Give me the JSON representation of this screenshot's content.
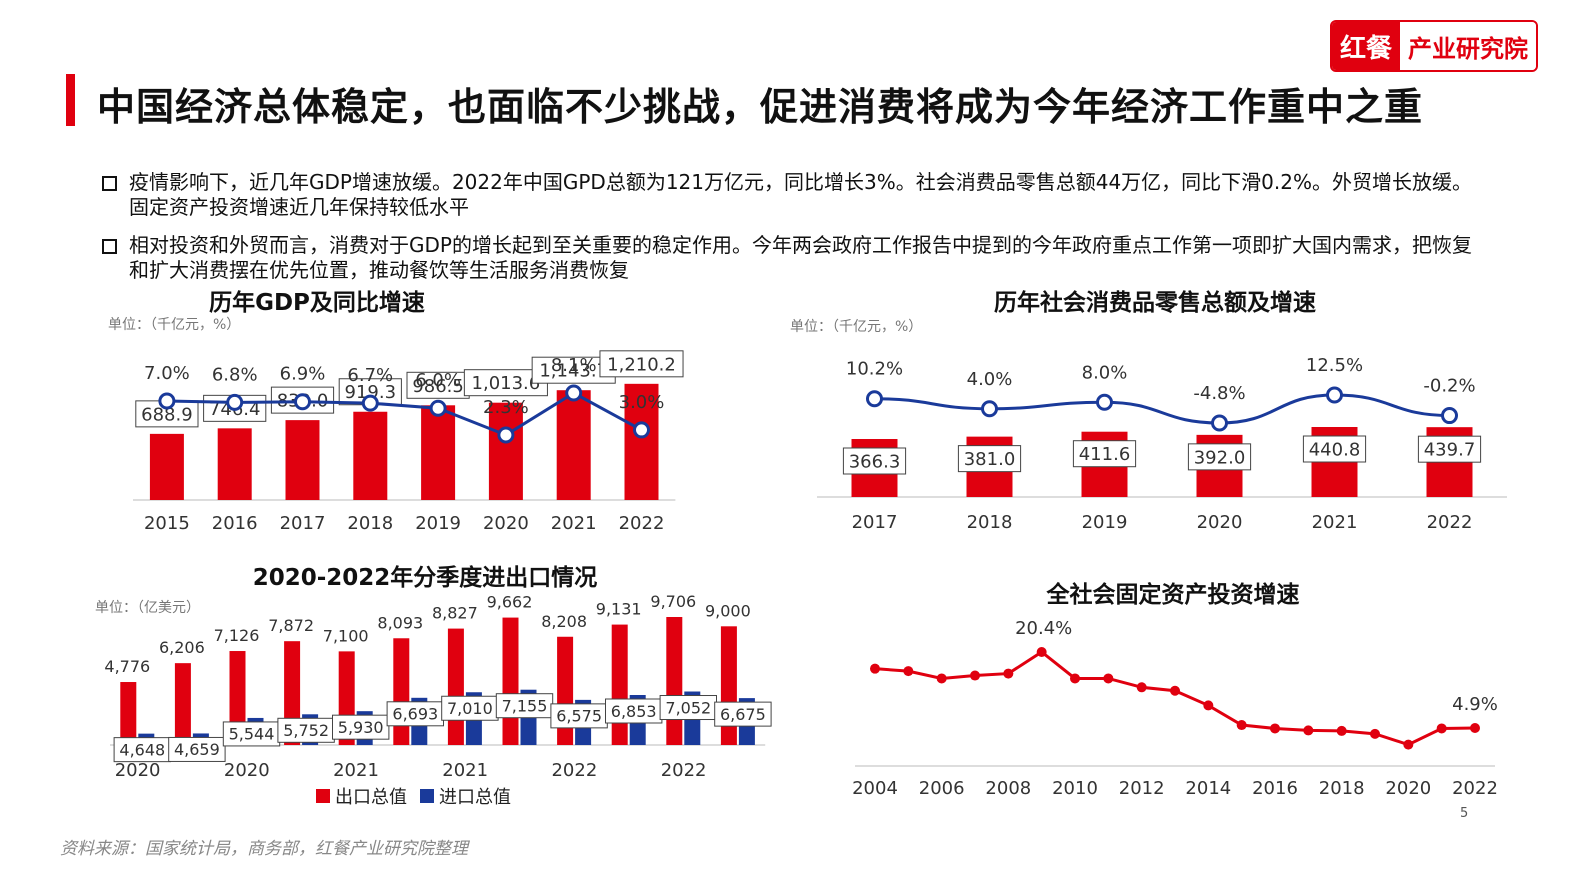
{
  "header": {
    "title": "中国经济总体稳定，也面临不少挑战，促进消费将成为今年经济工作重中之重",
    "logo_left": "红餐",
    "logo_right": "产业研究院",
    "brand_color": "#e0000f"
  },
  "bullets": [
    "疫情影响下，近几年GDP增速放缓。2022年中国GPD总额为121万亿元，同比增长3%。社会消费品零售总额44万亿，同比下滑0.2%。外贸增长放缓。固定资产投资增速近几年保持较低水平",
    "相对投资和外贸而言，消费对于GDP的增长起到至关重要的稳定作用。今年两会政府工作报告中提到的今年政府重点工作第一项即扩大国内需求，把恢复和扩大消费摆在优先位置，推动餐饮等生活服务消费恢复"
  ],
  "footer": {
    "source": "资料来源：国家统计局，商务部，红餐产业研究院整理",
    "page": "5"
  },
  "chart_data": [
    {
      "id": "gdp",
      "type": "bar+line",
      "title": "历年GDP及同比增速",
      "unit": "单位：（千亿元，%）",
      "categories": [
        "2015",
        "2016",
        "2017",
        "2018",
        "2019",
        "2020",
        "2021",
        "2022"
      ],
      "bars": [
        688.9,
        746.4,
        832.0,
        919.3,
        986.5,
        1013.6,
        1143.7,
        1210.2
      ],
      "bar_labels": [
        "688.9",
        "746.4",
        "832.0",
        "919.3",
        "986.5",
        "1,013.6",
        "1,143.7",
        "1,210.2"
      ],
      "line": [
        7.0,
        6.8,
        6.9,
        6.7,
        6.0,
        2.3,
        8.1,
        3.0
      ],
      "line_labels": [
        "7.0%",
        "6.8%",
        "6.9%",
        "6.7%",
        "6.0%",
        "2.3%",
        "8.1%",
        "3.0%"
      ],
      "bar_color": "#e0000f",
      "line_color": "#1a3a9a"
    },
    {
      "id": "retail",
      "type": "bar+line",
      "title": "历年社会消费品零售总额及增速",
      "unit": "单位：（千亿元，%）",
      "categories": [
        "2017",
        "2018",
        "2019",
        "2020",
        "2021",
        "2022"
      ],
      "bars": [
        366.3,
        381.0,
        411.6,
        392.0,
        440.8,
        439.7
      ],
      "bar_labels": [
        "366.3",
        "381.0",
        "411.6",
        "392.0",
        "440.8",
        "439.7"
      ],
      "line": [
        10.2,
        4.0,
        8.0,
        -4.8,
        12.5,
        -0.2
      ],
      "line_labels": [
        "10.2%",
        "4.0%",
        "8.0%",
        "-4.8%",
        "12.5%",
        "-0.2%"
      ],
      "bar_color": "#e0000f",
      "line_color": "#1a3a9a"
    },
    {
      "id": "trade",
      "type": "bar",
      "title": "2020-2022年分季度进出口情况",
      "unit": "单位：（亿美元）",
      "x_labels": [
        "2020",
        "2020",
        "2021",
        "2021",
        "2022",
        "2022"
      ],
      "series": [
        {
          "name": "出口总值",
          "color": "#e0000f",
          "values": [
            4776,
            6206,
            7126,
            7872,
            7100,
            8093,
            8827,
            9662,
            8208,
            9131,
            9706,
            9000
          ],
          "labels": [
            "4,776",
            "6,206",
            "7,126",
            "7,872",
            "7,100",
            "8,093",
            "8,827",
            "9,662",
            "8,208",
            "9,131",
            "9,706",
            "9,000"
          ]
        },
        {
          "name": "进口总值",
          "color": "#1a3a9a",
          "values": [
            4648,
            4659,
            5544,
            5752,
            5930,
            6693,
            7010,
            7155,
            6575,
            6853,
            7052,
            6675
          ],
          "labels": [
            "4,648",
            "4,659",
            "5,544",
            "5,752",
            "5,930",
            "6,693",
            "7,010",
            "7,155",
            "6,575",
            "6,853",
            "7,052",
            "6,675"
          ]
        }
      ]
    },
    {
      "id": "fai",
      "type": "line",
      "title": "全社会固定资产投资增速",
      "x": [
        2004,
        2005,
        2006,
        2007,
        2008,
        2009,
        2010,
        2011,
        2012,
        2013,
        2014,
        2015,
        2016,
        2017,
        2018,
        2019,
        2020,
        2021,
        2022
      ],
      "x_ticks": [
        "2004",
        "2006",
        "2008",
        "2010",
        "2012",
        "2014",
        "2016",
        "2018",
        "2020",
        "2022"
      ],
      "values": [
        17.0,
        16.5,
        15.0,
        15.6,
        16.0,
        20.4,
        15.0,
        15.0,
        13.2,
        12.5,
        9.5,
        5.5,
        4.8,
        4.4,
        4.3,
        3.7,
        1.5,
        4.8,
        4.9
      ],
      "annotations": [
        {
          "x": 2009,
          "label": "20.4%"
        },
        {
          "x": 2022,
          "label": "4.9%"
        }
      ],
      "color": "#e0000f"
    }
  ]
}
